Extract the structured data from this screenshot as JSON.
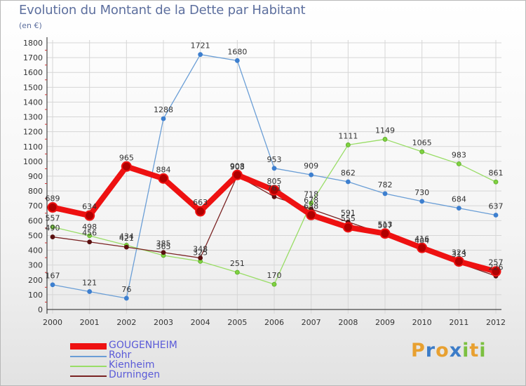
{
  "header": {
    "title": "Evolution du Montant de la Dette par Habitant",
    "subtitle": "(en €)"
  },
  "logo": {
    "text": "Proxiti",
    "letters": [
      "P",
      "r",
      "o",
      "x",
      "i",
      "t",
      "i"
    ],
    "colors": [
      "#e8a030",
      "#3c7cc8",
      "#e8a030",
      "#3c7cc8",
      "#7cc040",
      "#e8a030",
      "#7cc040"
    ]
  },
  "chart_data": {
    "type": "line",
    "title": "Evolution du Montant de la Dette par Habitant",
    "subtitle": "(en €)",
    "xlabel": "",
    "ylabel": "",
    "x": [
      "2000",
      "2001",
      "2002",
      "2003",
      "2004",
      "2005",
      "2006",
      "2007",
      "2008",
      "2009",
      "2010",
      "2011",
      "2012"
    ],
    "ylim": [
      0,
      1800
    ],
    "yticks": [
      0,
      100,
      200,
      300,
      400,
      500,
      600,
      700,
      800,
      900,
      1000,
      1100,
      1200,
      1300,
      1400,
      1500,
      1600,
      1700,
      1800
    ],
    "grid": true,
    "legend_position": "bottom-left",
    "series": [
      {
        "name": "GOUGENHEIM",
        "color": "#ee1111",
        "values": [
          689,
          634,
          965,
          884,
          663,
          908,
          805,
          638,
          555,
          513,
          416,
          324,
          257
        ]
      },
      {
        "name": "Rohr",
        "color": "#6a9ed6",
        "values": [
          167,
          121,
          76,
          1288,
          1721,
          1680,
          953,
          909,
          862,
          782,
          730,
          684,
          637
        ]
      },
      {
        "name": "Kienheim",
        "color": "#99dd66",
        "values": [
          557,
          498,
          434,
          365,
          325,
          251,
          170,
          718,
          1111,
          1149,
          1065,
          983,
          861
        ]
      },
      {
        "name": "Durningen",
        "color": "#7a2323",
        "values": [
          490,
          456,
          421,
          385,
          348,
          903,
          761,
          678,
          591,
          507,
          404,
          313,
          226
        ]
      }
    ]
  }
}
